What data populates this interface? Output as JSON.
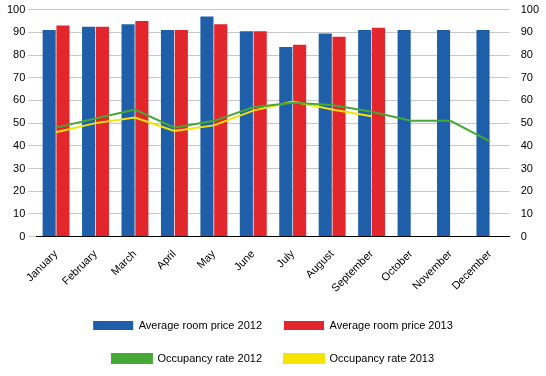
{
  "chart_data": {
    "type": "bar",
    "categories": [
      "January",
      "February",
      "March",
      "April",
      "May",
      "June",
      "July",
      "August",
      "September",
      "October",
      "November",
      "December"
    ],
    "series": [
      {
        "name": "Average room price 2012",
        "type": "bar",
        "color": "#1f5faa",
        "values": [
          91,
          92.5,
          93.5,
          91,
          97,
          90.5,
          83.5,
          89.5,
          91,
          91,
          91,
          91
        ]
      },
      {
        "name": "Average room price 2013",
        "type": "bar",
        "color": "#e2262c",
        "values": [
          93,
          92.5,
          95,
          91,
          93.5,
          90.5,
          84.5,
          88,
          92,
          null,
          null,
          null
        ]
      },
      {
        "name": "Occupancy rate 2012",
        "type": "line",
        "color": "#46a935",
        "axis": "y2",
        "values": [
          48,
          52,
          56,
          48,
          51,
          57,
          59,
          58,
          55,
          51,
          51,
          42
        ]
      },
      {
        "name": "Occupancy rate 2013",
        "type": "line",
        "color": "#f5e400",
        "axis": "y2",
        "values": [
          46,
          50,
          52.5,
          46.5,
          49,
          55.5,
          59.5,
          56,
          53,
          null,
          null,
          null
        ]
      }
    ],
    "ylim": [
      0,
      100
    ],
    "yticks": [
      0,
      10,
      20,
      30,
      40,
      50,
      60,
      70,
      80,
      90,
      100
    ],
    "y2lim": [
      0,
      100
    ],
    "y2ticks": [
      0,
      10,
      20,
      30,
      40,
      50,
      60,
      70,
      80,
      90,
      100
    ],
    "grid": true,
    "legend": "bottom"
  }
}
